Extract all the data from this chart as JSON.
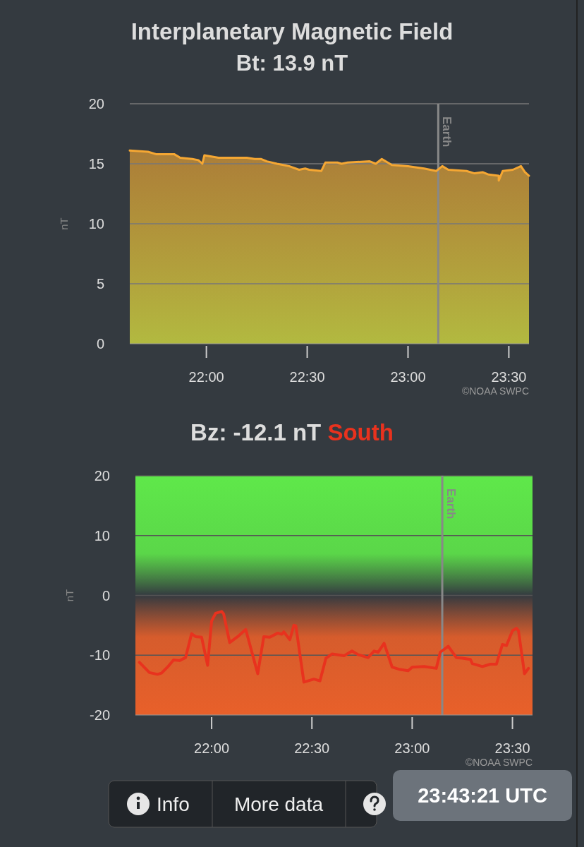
{
  "chart_data": [
    {
      "type": "area",
      "title": "Interplanetary Magnetic Field",
      "subtitle": "Bt: 13.9 nT",
      "ylabel": "nT",
      "annotations": [
        "©NOAA SWPC"
      ],
      "xlim": [
        21.62,
        23.6
      ],
      "xticks": [
        {
          "value": 22,
          "label": "22:00"
        },
        {
          "value": 22.5,
          "label": "22:30"
        },
        {
          "value": 23,
          "label": "23:00"
        },
        {
          "value": 23.5,
          "label": "23:30"
        }
      ],
      "ylim": [
        0,
        20
      ],
      "yticks": [
        0,
        5,
        10,
        15,
        20
      ],
      "grid": "y",
      "ref_lines": [
        {
          "axis": "x",
          "value": 23.15,
          "label": "Earth",
          "color": "#888888"
        }
      ],
      "series": [
        {
          "color": "#f5a733",
          "x": [
            21.62,
            21.71,
            21.75,
            21.84,
            21.87,
            21.93,
            21.96,
            21.98,
            21.99,
            22.06,
            22.14,
            22.2,
            22.24,
            22.27,
            22.3,
            22.35,
            22.41,
            22.46,
            22.49,
            22.51,
            22.57,
            22.59,
            22.65,
            22.67,
            22.7,
            22.81,
            22.84,
            22.87,
            22.92,
            23.0,
            23.08,
            23.14,
            23.17,
            23.2,
            23.29,
            23.33,
            23.37,
            23.4,
            23.45,
            23.45,
            23.47,
            23.52,
            23.56,
            23.58,
            23.6
          ],
          "values": [
            16.1,
            16.0,
            15.8,
            15.8,
            15.5,
            15.4,
            15.3,
            15.0,
            15.7,
            15.5,
            15.5,
            15.5,
            15.4,
            15.4,
            15.2,
            15.0,
            14.8,
            14.5,
            14.6,
            14.5,
            14.4,
            15.1,
            15.1,
            15.0,
            15.1,
            15.2,
            15.0,
            15.4,
            14.9,
            14.8,
            14.6,
            14.4,
            14.8,
            14.5,
            14.4,
            14.2,
            14.3,
            14.1,
            14.0,
            13.6,
            14.4,
            14.5,
            14.8,
            14.3,
            14.0
          ]
        }
      ]
    },
    {
      "type": "line",
      "title": "Bz: -12.1 nT",
      "subtitle": "South",
      "ylabel": "nT",
      "annotations": [
        "©NOAA SWPC"
      ],
      "xlim": [
        21.62,
        23.6
      ],
      "xticks": [
        {
          "value": 22,
          "label": "22:00"
        },
        {
          "value": 22.5,
          "label": "22:30"
        },
        {
          "value": 23,
          "label": "23:00"
        },
        {
          "value": 23.5,
          "label": "23:30"
        }
      ],
      "ylim": [
        -20,
        20
      ],
      "yticks": [
        -20,
        -10,
        0,
        10,
        20
      ],
      "grid": "y",
      "marker": "none",
      "line_style": "solid",
      "bands": [
        {
          "axis": "y",
          "from": 0,
          "to": 20,
          "color": "#5fe84a"
        },
        {
          "axis": "y",
          "from": -20,
          "to": 0,
          "color": "#e8602a"
        }
      ],
      "ref_lines": [
        {
          "axis": "x",
          "value": 23.15,
          "label": "Earth",
          "color": "#888888"
        }
      ],
      "series": [
        {
          "color": "#e8321e",
          "x": [
            21.64,
            21.69,
            21.73,
            21.75,
            21.78,
            21.81,
            21.84,
            21.87,
            21.9,
            21.92,
            21.95,
            21.98,
            22.0,
            22.02,
            22.05,
            22.06,
            22.09,
            22.13,
            22.17,
            22.23,
            22.26,
            22.29,
            22.33,
            22.35,
            22.36,
            22.39,
            22.41,
            22.42,
            22.46,
            22.51,
            22.54,
            22.57,
            22.6,
            22.66,
            22.7,
            22.73,
            22.78,
            22.81,
            22.83,
            22.86,
            22.9,
            22.94,
            22.98,
            23.0,
            23.06,
            23.12,
            23.14,
            23.18,
            23.22,
            23.25,
            23.29,
            23.3,
            23.35,
            23.39,
            23.42,
            23.45,
            23.47,
            23.5,
            23.52,
            23.53,
            23.56,
            23.58
          ],
          "values": [
            -11.2,
            -12.9,
            -13.2,
            -13.0,
            -12.0,
            -10.8,
            -10.9,
            -10.4,
            -6.4,
            -6.9,
            -7.0,
            -11.7,
            -4.3,
            -3.0,
            -2.7,
            -3.1,
            -7.9,
            -6.9,
            -5.7,
            -13.1,
            -6.9,
            -7.0,
            -6.3,
            -6.5,
            -6.1,
            -7.4,
            -5.0,
            -5.1,
            -14.5,
            -14.0,
            -14.3,
            -10.5,
            -9.8,
            -10.1,
            -9.3,
            -9.9,
            -10.4,
            -9.3,
            -9.5,
            -8.0,
            -12.0,
            -12.4,
            -12.6,
            -12.0,
            -11.9,
            -12.2,
            -9.5,
            -8.5,
            -10.4,
            -10.5,
            -10.7,
            -11.4,
            -11.9,
            -11.5,
            -11.5,
            -8.2,
            -8.4,
            -5.9,
            -5.5,
            -5.9,
            -13.1,
            -12.2
          ]
        }
      ]
    },
    {
      "type": "other",
      "annotations": [
        "Info",
        "More data",
        "23:43:21 UTC"
      ]
    }
  ]
}
